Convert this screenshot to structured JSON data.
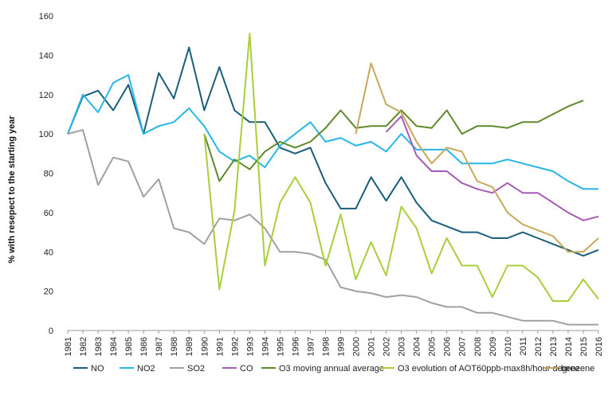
{
  "chart_data": {
    "type": "line",
    "title": "",
    "xlabel": "",
    "ylabel": "% with resepect to the starting year",
    "ylim": [
      0,
      160
    ],
    "yticks": [
      0,
      20,
      40,
      60,
      80,
      100,
      120,
      140,
      160
    ],
    "grid": false,
    "legend_position": "bottom",
    "x": [
      "1981",
      "1982",
      "1983",
      "1984",
      "1985",
      "1986",
      "1987",
      "1988",
      "1989",
      "1990",
      "1991",
      "1992",
      "1993",
      "1994",
      "1995",
      "1996",
      "1997",
      "1998",
      "1999",
      "2000",
      "2001",
      "2002",
      "2003",
      "2004",
      "2005",
      "2006",
      "2007",
      "2008",
      "2009",
      "2010",
      "2011",
      "2012",
      "2013",
      "2014",
      "2015",
      "2016"
    ],
    "series": [
      {
        "name": "NO",
        "color": "#1a5e7a",
        "values": [
          100,
          119,
          122,
          112,
          125,
          100,
          131,
          118,
          144,
          112,
          134,
          112,
          106,
          106,
          93,
          90,
          93,
          75,
          62,
          62,
          78,
          66,
          78,
          65,
          56,
          53,
          50,
          50,
          47,
          47,
          50,
          47,
          44,
          41,
          38,
          41
        ]
      },
      {
        "name": "NO2",
        "color": "#29b5e8",
        "values": [
          100,
          120,
          111,
          126,
          130,
          100,
          104,
          106,
          113,
          104,
          91,
          86,
          89,
          83,
          94,
          100,
          106,
          96,
          98,
          94,
          96,
          91,
          100,
          92,
          92,
          92,
          85,
          85,
          85,
          87,
          85,
          83,
          81,
          76,
          72,
          72
        ]
      },
      {
        "name": "SO2",
        "color": "#a0a0a0",
        "values": [
          100,
          102,
          74,
          88,
          86,
          68,
          77,
          52,
          50,
          44,
          57,
          56,
          59,
          52,
          40,
          40,
          39,
          36,
          22,
          20,
          19,
          17,
          18,
          17,
          14,
          12,
          12,
          9,
          9,
          7,
          5,
          5,
          5,
          3,
          3,
          3
        ]
      },
      {
        "name": "CO",
        "color": "#a65bb5",
        "values": [
          null,
          null,
          null,
          null,
          null,
          null,
          null,
          null,
          null,
          null,
          null,
          null,
          null,
          null,
          null,
          null,
          null,
          null,
          null,
          null,
          null,
          101,
          109,
          89,
          81,
          81,
          75,
          72,
          70,
          75,
          70,
          70,
          65,
          60,
          56,
          58
        ]
      },
      {
        "name": "O3 moving annual average",
        "color": "#5f8a2c",
        "values": [
          null,
          null,
          null,
          null,
          null,
          null,
          null,
          null,
          null,
          100,
          76,
          87,
          82,
          91,
          96,
          93,
          96,
          103,
          112,
          103,
          104,
          104,
          112,
          104,
          103,
          112,
          100,
          104,
          104,
          103,
          106,
          106,
          110,
          114,
          117,
          null
        ]
      },
      {
        "name": "O3 evolution of AOT60ppb-max8h/hour degree",
        "color": "#a8cf3a",
        "values": [
          null,
          null,
          null,
          null,
          null,
          null,
          null,
          null,
          null,
          100,
          21,
          61,
          151,
          33,
          65,
          78,
          65,
          33,
          59,
          26,
          45,
          28,
          63,
          52,
          29,
          47,
          33,
          33,
          17,
          33,
          33,
          27,
          15,
          15,
          26,
          16
        ]
      },
      {
        "name": "benzene",
        "color": "#c8a85a",
        "values": [
          null,
          null,
          null,
          null,
          null,
          null,
          null,
          null,
          null,
          null,
          null,
          null,
          null,
          null,
          null,
          null,
          null,
          null,
          null,
          100,
          136,
          115,
          111,
          96,
          85,
          93,
          91,
          76,
          73,
          60,
          54,
          51,
          48,
          40,
          40,
          47
        ]
      }
    ]
  }
}
